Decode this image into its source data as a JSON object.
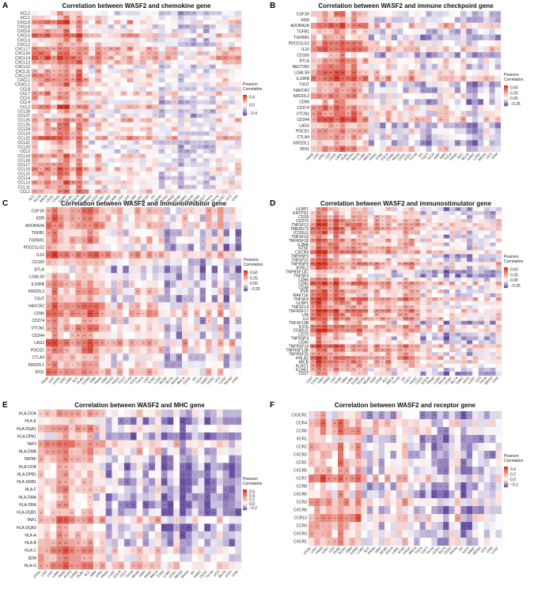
{
  "figure": {
    "width": 675,
    "height": 760
  },
  "chart_data": [
    {
      "type": "heatmap",
      "letter": "A",
      "title": "Correlation between WASF2 and chemokine gene",
      "rows": [
        "XCL2",
        "XCL1",
        "CXCL9",
        "CXCL8",
        "CXCL6",
        "CXCL5",
        "CXCL3",
        "CXCL2",
        "CXCL17",
        "CXCL16",
        "CXCL14",
        "CXCL13",
        "CXCL12",
        "CXCL11",
        "CXCL10",
        "CXCL1",
        "CX3CL1",
        "CCL8",
        "CCL7",
        "CCL5",
        "CCL4",
        "CCL3",
        "CCL28",
        "CCL27",
        "CCL26",
        "CCL25",
        "CCL24",
        "CCL23",
        "CCL22",
        "CCL21",
        "CCL20",
        "CCL2",
        "CCL19",
        "CCL18",
        "CCL17",
        "CCL16",
        "CCL15",
        "CCL14",
        "CCL13",
        "CCL11",
        "CCL1"
      ],
      "columns": [
        "ACC",
        "BLCA",
        "BRCA",
        "CESC",
        "CHOL",
        "COAD",
        "DLBC",
        "ESCA",
        "GBM",
        "HNSC",
        "KICH",
        "KIRC",
        "KIRP",
        "LAML",
        "LGG",
        "LIHC",
        "LUAD",
        "LUSC",
        "MESO",
        "OV",
        "PAAD",
        "PCPG",
        "PRAD",
        "READ",
        "SARC",
        "SKCM",
        "STAD",
        "TGCT",
        "THCA",
        "THYM",
        "UCEC",
        "UCS",
        "UVM"
      ],
      "legend": {
        "title": "Pearson\nCorrelation",
        "ticks": [
          0.4,
          0.0,
          -0.4
        ],
        "tick_labels": [
          "0.4",
          "0.0",
          "−0.4"
        ],
        "min": -0.5,
        "max": 0.5
      },
      "seed": 11
    },
    {
      "type": "heatmap",
      "letter": "B",
      "title": "Correlation between WASF2 and immune checkpoint gene",
      "rows": [
        "CSF1R",
        "KDR",
        "ADORA2A",
        "TGFB1",
        "TGFBR1",
        "PDCD1LG2",
        "IL10",
        "CD160",
        "BTLA",
        "NECTIN2",
        "LGALS9",
        "IL10RB",
        "TIGIT",
        "HAVCR2",
        "KIR2DL3",
        "CD96",
        "CD274",
        "VTCN1",
        "CD244",
        "LAG3",
        "PDCD1",
        "CTLA4",
        "KIR2DL1",
        "IDO1"
      ],
      "columns": [
        "PAAD",
        "LIHC",
        "KIRC",
        "LGG",
        "CHOL",
        "LAML",
        "DLBC",
        "PCPG",
        "SKCM",
        "LUAD",
        "BRCA",
        "HNSC",
        "STAD",
        "ESCA",
        "COAD",
        "READ",
        "CESC",
        "UCEC",
        "THYM",
        "OV",
        "TGCT",
        "KICH",
        "KIRP",
        "GBM",
        "THCA",
        "PRAD",
        "ACC",
        "BLCA",
        "SARC",
        "LUSC",
        "MESO",
        "UCS",
        "UVM"
      ],
      "legend": {
        "title": "Pearson\nCorrelation",
        "ticks": [
          0.5,
          0.25,
          0.0,
          -0.25
        ],
        "tick_labels": [
          "0.50",
          "0.25",
          "0.00",
          "−0.25"
        ],
        "min": -0.35,
        "max": 0.6
      },
      "seed": 23
    },
    {
      "type": "heatmap",
      "letter": "C",
      "title": "Correlation between WASF2 and immunoinhibitor gene",
      "rows": [
        "CSF1R",
        "KDR",
        "ADORA2A",
        "TGFB1",
        "TGFBR1",
        "PDCD1LG2",
        "IL10",
        "CD160",
        "BTLA",
        "LGALS9",
        "IL10RB",
        "KIR2DL3",
        "TIGIT",
        "HAVCR2",
        "CD96",
        "CD274",
        "VTCN1",
        "CD244",
        "LAG3",
        "PDCD1",
        "CTLA4",
        "KIR2DL1",
        "IDO1"
      ],
      "columns": [
        "PAAD",
        "LIHC",
        "CHOL",
        "KIRC",
        "LAML",
        "ACC",
        "DLBC",
        "COAD",
        "GBM",
        "PRAD",
        "KIRP",
        "PCPG",
        "HNSC",
        "TGCT",
        "THYM",
        "ESCA",
        "THCA",
        "LGG",
        "STAD",
        "LUAD",
        "READ",
        "BLCA",
        "SKCM",
        "BRCA",
        "CESC",
        "OV",
        "KICH",
        "SARC",
        "UCEC",
        "UCS",
        "LUSC",
        "MESO",
        "UVM"
      ],
      "legend": {
        "title": "Pearson\nCorrelation",
        "ticks": [
          0.5,
          0.25,
          0.0,
          -0.25
        ],
        "tick_labels": [
          "0.50",
          "0.25",
          "0.00",
          "−0.25"
        ],
        "min": -0.35,
        "max": 0.6
      },
      "seed": 37
    },
    {
      "type": "heatmap",
      "letter": "D",
      "title": "Correlation between WASF2 and immunostimulator gene",
      "rows": [
        "ULBP1",
        "ENTPD1",
        "CD28",
        "CD276",
        "TNFSF13",
        "TMEM173",
        "ICOSLG",
        "TNFSF18",
        "TNFRSF18",
        "IL2RA",
        "NT5E",
        "CXCR4",
        "TNFRSF9",
        "TNFSF15",
        "TNFRSF8",
        "BTNL2",
        "TNFRSF13C",
        "TNFSF4",
        "CD86",
        "CD80",
        "CD48",
        "PVR",
        "RAET1E",
        "TNFSF9",
        "ULBP1",
        "TNFSF14",
        "TNFRSF17",
        "LTA",
        "IL6",
        "TNFSF13B",
        "ICOS",
        "CD40LG",
        "CD70",
        "TNFRSF4",
        "CD40",
        "TNFRSF14",
        "TNFRSF13B",
        "TNFRSF25",
        "HHLA2",
        "MICB",
        "KLRC1",
        "KLRK1",
        "CD27"
      ],
      "columns": [
        "LIHC",
        "CHOL",
        "KIRC",
        "PAAD",
        "LGG",
        "DLBC",
        "GBM",
        "LAML",
        "COAD",
        "PCPG",
        "READ",
        "KIRP",
        "STAD",
        "ACC",
        "BRCA",
        "THYM",
        "OV",
        "TGCT",
        "HNSC",
        "CESC",
        "ESCA",
        "PRAD",
        "LUAD",
        "SKCM",
        "UCEC",
        "BLCA",
        "SARC",
        "KICH",
        "LUSC",
        "UCS",
        "THCA",
        "MESO",
        "UVM"
      ],
      "legend": {
        "title": "Pearson\nCorrelation",
        "ticks": [
          0.5,
          0.25,
          0.0,
          -0.25
        ],
        "tick_labels": [
          "0.50",
          "0.25",
          "0.00",
          "−0.25"
        ],
        "min": -0.35,
        "max": 0.6
      },
      "seed": 41
    },
    {
      "type": "heatmap",
      "letter": "E",
      "title": "Correlation between WASF2 and MHC gene",
      "rows": [
        "HLA-DOA",
        "HLA-E",
        "HLA-DQA1",
        "HLA-DPA1",
        "TAP2",
        "HLA-DMB",
        "TAPBP",
        "HLA-DOB",
        "HLA-DPB1",
        "HLA-DRB1",
        "HLA-F",
        "HLA-DMA",
        "HLA-DRA",
        "HLA-DQB1",
        "TAP1",
        "HLA-DQA2",
        "HLA-A",
        "HLA-B",
        "HLA-C",
        "B2M",
        "HLA-G"
      ],
      "columns": [
        "CHOL",
        "LGG",
        "LIHC",
        "LAML",
        "PAAD",
        "PCPG",
        "COAD",
        "DLBC",
        "ACC",
        "GBM",
        "KIRC",
        "PRAD",
        "LUSC",
        "ESCA",
        "TGCT",
        "THCA",
        "READ",
        "KIRP",
        "HNSC",
        "BRCA",
        "STAD",
        "LUAD",
        "UCEC",
        "MESO",
        "SKCM",
        "OV",
        "SARC",
        "CESC",
        "THYM",
        "UCS",
        "BLCA",
        "KICH",
        "UVM"
      ],
      "legend": {
        "title": "Pearson\nCorrelation",
        "ticks": [
          0.6,
          0.4,
          0.2,
          0.0,
          -0.2
        ],
        "tick_labels": [
          "0.6",
          "0.4",
          "0.2",
          "0.0",
          "−0.2"
        ],
        "min": -0.3,
        "max": 0.7
      },
      "seed": 53
    },
    {
      "type": "heatmap",
      "letter": "F",
      "title": "Correlation between WASF2 and receptor gene",
      "rows": [
        "CX3CR1",
        "CCR4",
        "CCR6",
        "XCR1",
        "CCR2",
        "CXCR2",
        "CCR1",
        "CXCR5",
        "CCR7",
        "CCR8",
        "CXCR6",
        "CCR3",
        "CXCR6",
        "CCR10",
        "CCR9",
        "CXCR3",
        "CXCR1"
      ],
      "columns": [
        "CHOL",
        "LIHC",
        "PAAD",
        "KIRC",
        "LGG",
        "DLBC",
        "PCPG",
        "GBM",
        "COAD",
        "LUAD",
        "ACC",
        "PRAD",
        "KIRP",
        "READ",
        "ESCA",
        "LAML",
        "STAD",
        "HNSC",
        "BRCA",
        "THCA",
        "TGCT",
        "THYM",
        "UCEC",
        "BLCA",
        "CESC",
        "SKCM",
        "OV",
        "KICH",
        "SARC",
        "MESO",
        "UCS",
        "UVM",
        "LUSC"
      ],
      "legend": {
        "title": "Pearson\nCorrelation",
        "ticks": [
          0.4,
          0.2,
          0.0,
          -0.2
        ],
        "tick_labels": [
          "0.4",
          "0.2",
          "0.0",
          "−0.2"
        ],
        "min": -0.3,
        "max": 0.5
      },
      "seed": 67
    }
  ],
  "colors": {
    "positive": "#d7301f",
    "neutral": "#ffffff",
    "negative": "#6a51a3"
  }
}
